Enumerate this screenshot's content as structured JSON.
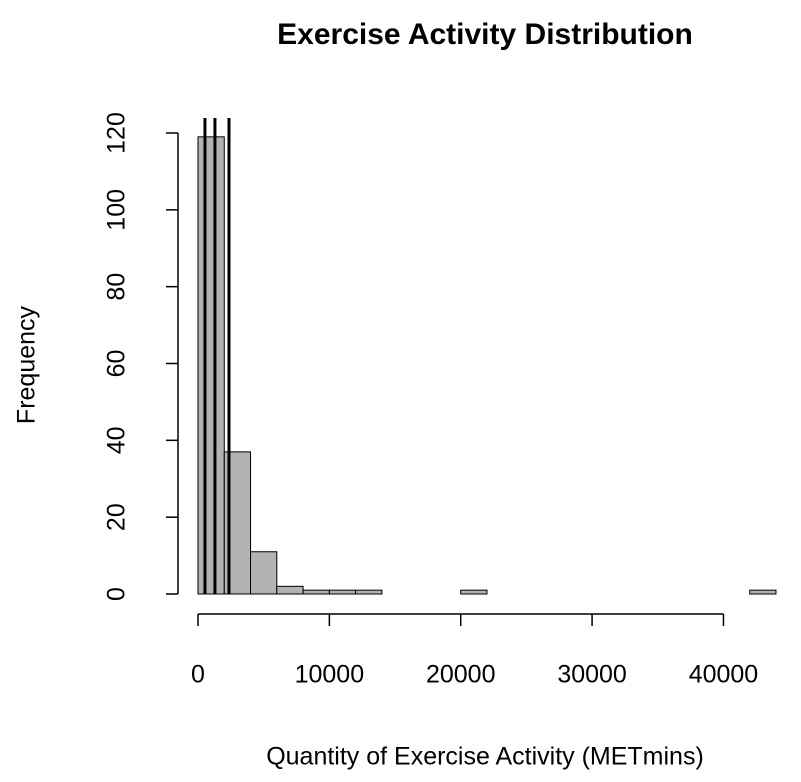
{
  "chart_data": {
    "type": "histogram",
    "title": "Exercise Activity Distribution",
    "x_label": "Quantity of Exercise Activity (METmins)",
    "y_label": "Frequency",
    "bins": [
      0,
      2000,
      4000,
      6000,
      8000,
      10000,
      12000,
      14000,
      16000,
      18000,
      20000,
      22000,
      24000,
      26000,
      28000,
      30000,
      32000,
      34000,
      36000,
      38000,
      40000,
      42000,
      44000
    ],
    "values": [
      119,
      37,
      11,
      2,
      1,
      1,
      1,
      0,
      0,
      0,
      1,
      0,
      0,
      0,
      0,
      0,
      0,
      0,
      0,
      0,
      0,
      1
    ],
    "color": "#b3b3b3",
    "vlines": [
      530,
      1290,
      2360
    ],
    "xlim": [
      0,
      44000
    ],
    "xticks": [
      0,
      10000,
      20000,
      30000,
      40000
    ],
    "ylim": [
      0,
      120
    ],
    "yticks": [
      0,
      20,
      40,
      60,
      80,
      100,
      120
    ]
  }
}
